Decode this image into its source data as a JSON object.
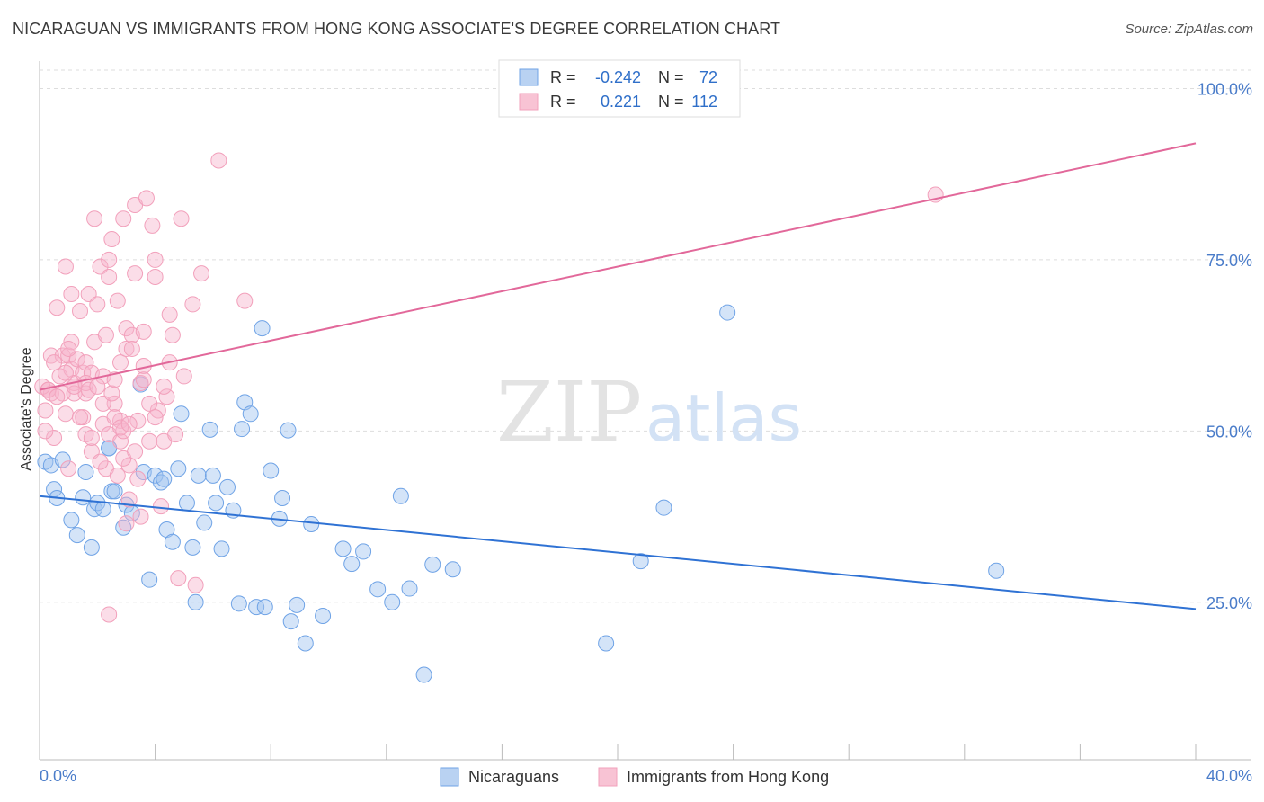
{
  "title": "NICARAGUAN VS IMMIGRANTS FROM HONG KONG ASSOCIATE'S DEGREE CORRELATION CHART",
  "source": "Source: ZipAtlas.com",
  "watermark": {
    "zip": "ZIP",
    "atlas": "atlas"
  },
  "colors": {
    "blue": "#6fa3e6",
    "blue_line": "#2f72d4",
    "pink": "#f2a0bb",
    "pink_line": "#e2689a",
    "grid": "#dddddd"
  },
  "chart_data": {
    "type": "scatter",
    "title": "NICARAGUAN VS IMMIGRANTS FROM HONG KONG ASSOCIATE'S DEGREE CORRELATION CHART",
    "xlabel": "",
    "ylabel": "Associate's Degree",
    "xlim": [
      0,
      40
    ],
    "ylim": [
      2,
      104
    ],
    "x_tick_labels": [
      "0.0%",
      "40.0%"
    ],
    "y_ticks": [
      25,
      50,
      75,
      100
    ],
    "y_tick_labels": [
      "25.0%",
      "50.0%",
      "75.0%",
      "100.0%"
    ],
    "grid": true,
    "legend": [
      {
        "name": "Nicaraguans",
        "r_label": "R =",
        "r": "-0.242",
        "n_label": "N =",
        "n": "72"
      },
      {
        "name": "Immigrants from Hong Kong",
        "r_label": "R =",
        "r": "0.221",
        "n_label": "N =",
        "n": "112"
      }
    ],
    "series": [
      {
        "name": "Nicaraguans",
        "trend": {
          "x": [
            0,
            40
          ],
          "y": [
            40.5,
            24.0
          ]
        },
        "points": [
          [
            0.2,
            45.5
          ],
          [
            0.4,
            45.0
          ],
          [
            0.5,
            41.5
          ],
          [
            0.6,
            40.2
          ],
          [
            0.8,
            45.8
          ],
          [
            1.1,
            37.0
          ],
          [
            1.3,
            34.8
          ],
          [
            1.5,
            40.3
          ],
          [
            1.6,
            44.0
          ],
          [
            1.8,
            33.0
          ],
          [
            1.9,
            38.6
          ],
          [
            2.0,
            39.5
          ],
          [
            2.2,
            38.6
          ],
          [
            2.4,
            47.5
          ],
          [
            2.5,
            41.2
          ],
          [
            2.6,
            41.2
          ],
          [
            2.9,
            35.9
          ],
          [
            3.0,
            39.2
          ],
          [
            3.2,
            38.0
          ],
          [
            3.5,
            56.8
          ],
          [
            3.6,
            44.0
          ],
          [
            3.8,
            28.3
          ],
          [
            4.0,
            43.5
          ],
          [
            4.2,
            42.5
          ],
          [
            4.3,
            43.0
          ],
          [
            4.4,
            35.6
          ],
          [
            4.6,
            33.8
          ],
          [
            4.8,
            44.5
          ],
          [
            4.9,
            52.5
          ],
          [
            5.1,
            39.5
          ],
          [
            5.3,
            33.0
          ],
          [
            5.4,
            25.0
          ],
          [
            5.5,
            43.5
          ],
          [
            5.7,
            36.6
          ],
          [
            5.9,
            50.2
          ],
          [
            6.0,
            43.5
          ],
          [
            6.1,
            39.5
          ],
          [
            6.3,
            32.8
          ],
          [
            6.5,
            41.8
          ],
          [
            6.7,
            38.4
          ],
          [
            6.9,
            24.8
          ],
          [
            7.0,
            50.3
          ],
          [
            7.1,
            54.2
          ],
          [
            7.3,
            52.5
          ],
          [
            7.5,
            24.3
          ],
          [
            7.7,
            65.0
          ],
          [
            7.8,
            24.3
          ],
          [
            8.0,
            44.2
          ],
          [
            8.3,
            37.2
          ],
          [
            8.4,
            40.2
          ],
          [
            8.6,
            50.1
          ],
          [
            8.7,
            22.2
          ],
          [
            8.9,
            24.6
          ],
          [
            9.2,
            19.0
          ],
          [
            9.4,
            36.4
          ],
          [
            9.8,
            23.0
          ],
          [
            10.5,
            32.8
          ],
          [
            10.8,
            30.6
          ],
          [
            11.2,
            32.4
          ],
          [
            11.7,
            26.9
          ],
          [
            12.2,
            25.0
          ],
          [
            12.5,
            40.5
          ],
          [
            12.8,
            27.0
          ],
          [
            13.3,
            14.4
          ],
          [
            13.6,
            30.5
          ],
          [
            14.3,
            29.8
          ],
          [
            19.6,
            19.0
          ],
          [
            20.8,
            31.0
          ],
          [
            21.6,
            38.8
          ],
          [
            23.8,
            67.3
          ],
          [
            33.1,
            29.6
          ],
          [
            2.4,
            47.5
          ]
        ]
      },
      {
        "name": "Immigrants from Hong Kong",
        "trend": {
          "x": [
            0,
            40
          ],
          "y": [
            56.0,
            92.0
          ]
        },
        "points": [
          [
            0.2,
            53.0
          ],
          [
            0.3,
            56.0
          ],
          [
            0.4,
            61.0
          ],
          [
            0.4,
            55.5
          ],
          [
            0.5,
            49.0
          ],
          [
            0.6,
            68.0
          ],
          [
            0.7,
            58.0
          ],
          [
            0.8,
            55.5
          ],
          [
            0.8,
            61.0
          ],
          [
            0.9,
            74.0
          ],
          [
            0.9,
            52.5
          ],
          [
            1.0,
            44.5
          ],
          [
            1.0,
            61.0
          ],
          [
            1.1,
            59.0
          ],
          [
            1.1,
            63.0
          ],
          [
            1.1,
            70.0
          ],
          [
            1.2,
            57.0
          ],
          [
            1.2,
            55.5
          ],
          [
            1.3,
            60.5
          ],
          [
            1.4,
            67.5
          ],
          [
            1.5,
            58.5
          ],
          [
            1.5,
            52.0
          ],
          [
            1.6,
            49.5
          ],
          [
            1.6,
            60.0
          ],
          [
            1.6,
            55.5
          ],
          [
            1.7,
            70.0
          ],
          [
            1.8,
            47.0
          ],
          [
            1.8,
            58.5
          ],
          [
            1.9,
            81.0
          ],
          [
            1.9,
            63.0
          ],
          [
            2.0,
            68.5
          ],
          [
            2.1,
            74.0
          ],
          [
            2.2,
            58.0
          ],
          [
            2.2,
            51.0
          ],
          [
            2.3,
            44.5
          ],
          [
            2.3,
            64.0
          ],
          [
            2.4,
            72.5
          ],
          [
            2.4,
            75.0
          ],
          [
            2.4,
            49.5
          ],
          [
            2.5,
            78.0
          ],
          [
            2.6,
            54.0
          ],
          [
            2.7,
            43.5
          ],
          [
            2.7,
            69.0
          ],
          [
            2.8,
            60.0
          ],
          [
            2.8,
            48.5
          ],
          [
            2.8,
            51.5
          ],
          [
            2.9,
            81.0
          ],
          [
            2.9,
            50.0
          ],
          [
            3.0,
            62.0
          ],
          [
            3.0,
            65.0
          ],
          [
            3.0,
            36.5
          ],
          [
            3.1,
            45.0
          ],
          [
            3.1,
            40.0
          ],
          [
            3.2,
            64.0
          ],
          [
            3.2,
            62.0
          ],
          [
            3.3,
            83.0
          ],
          [
            3.3,
            73.0
          ],
          [
            3.4,
            51.5
          ],
          [
            3.4,
            43.0
          ],
          [
            3.5,
            37.5
          ],
          [
            3.6,
            59.5
          ],
          [
            3.6,
            64.5
          ],
          [
            3.7,
            84.0
          ],
          [
            3.8,
            48.5
          ],
          [
            3.9,
            80.0
          ],
          [
            4.0,
            72.5
          ],
          [
            4.0,
            75.0
          ],
          [
            4.1,
            53.0
          ],
          [
            4.2,
            39.0
          ],
          [
            4.3,
            48.5
          ],
          [
            4.4,
            55.0
          ],
          [
            4.5,
            67.0
          ],
          [
            4.6,
            64.0
          ],
          [
            4.7,
            49.5
          ],
          [
            4.8,
            28.5
          ],
          [
            4.9,
            81.0
          ],
          [
            5.0,
            58.0
          ],
          [
            5.3,
            68.5
          ],
          [
            5.4,
            27.5
          ],
          [
            5.6,
            73.0
          ],
          [
            6.2,
            89.5
          ],
          [
            7.1,
            69.0
          ],
          [
            0.1,
            56.5
          ],
          [
            0.2,
            50.0
          ],
          [
            0.3,
            56.0
          ],
          [
            0.5,
            60.0
          ],
          [
            0.6,
            55.0
          ],
          [
            0.9,
            58.5
          ],
          [
            1.0,
            62.0
          ],
          [
            1.2,
            56.5
          ],
          [
            1.4,
            52.0
          ],
          [
            1.6,
            57.0
          ],
          [
            1.7,
            56.0
          ],
          [
            1.8,
            49.0
          ],
          [
            2.0,
            56.5
          ],
          [
            2.2,
            54.0
          ],
          [
            2.5,
            55.5
          ],
          [
            2.6,
            52.0
          ],
          [
            2.8,
            50.5
          ],
          [
            2.9,
            46.0
          ],
          [
            3.1,
            51.0
          ],
          [
            3.3,
            47.0
          ],
          [
            3.5,
            57.0
          ],
          [
            3.8,
            54.0
          ],
          [
            4.0,
            52.0
          ],
          [
            4.3,
            56.5
          ],
          [
            4.5,
            60.0
          ],
          [
            2.4,
            23.2
          ],
          [
            3.6,
            57.5
          ],
          [
            2.1,
            45.5
          ],
          [
            31.0,
            84.5
          ],
          [
            2.6,
            57.5
          ]
        ]
      }
    ]
  }
}
